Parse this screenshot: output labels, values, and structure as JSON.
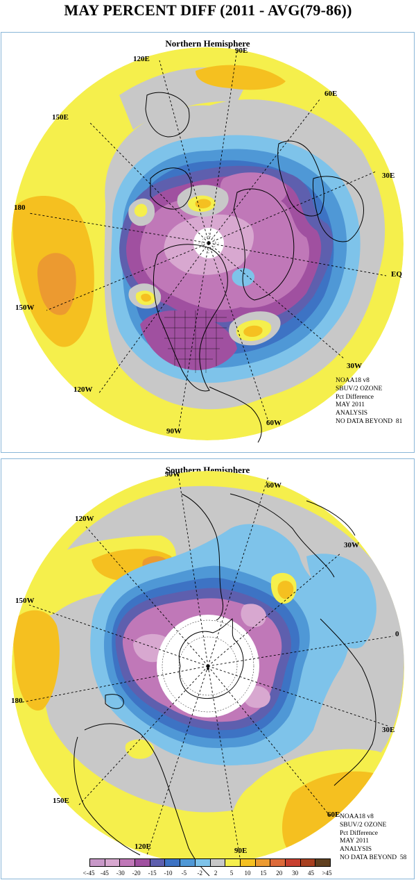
{
  "title": "MAY PERCENT DIFF (2011 - AVG(79-86))",
  "colors": {
    "n45plus": "#c898c8",
    "n45": "#d8a8d0",
    "n30": "#c078b8",
    "n20": "#a050a0",
    "n15": "#5e5fae",
    "n10": "#3d73c4",
    "n5": "#4f98d6",
    "n2": "#7ec3ea",
    "zero": "#c8c8c8",
    "p2": "#f5ef4c",
    "p5": "#f5c020",
    "p10": "#ec9a30",
    "p15": "#dd6a3a",
    "p20": "#c84030",
    "p30": "#a84020",
    "p45": "#8a5018",
    "p45plus": "#604020",
    "panel_border": "#89b6d8"
  },
  "north": {
    "title": "Northern Hemisphere",
    "labels": {
      "lon90e": "90E",
      "lon120e": "120E",
      "lon60e": "60E",
      "lon150e": "150E",
      "lon30e": "30E",
      "lon180": "180",
      "eq": "EQ",
      "lon150w": "150W",
      "lon30w": "30W",
      "lon120w": "120W",
      "lon60w": "60W",
      "lon90w": "90W"
    },
    "info": [
      "NOAA18 v8",
      "SBUV/2 OZONE",
      "Pct Difference",
      "MAY 2011",
      "ANALYSIS",
      "NO DATA BEYOND  81"
    ]
  },
  "south": {
    "title": "Southern Hemisphere",
    "labels": {
      "lon90w": "90W",
      "lon60w": "60W",
      "lon120w": "120W",
      "lon30w": "30W",
      "lon150w": "150W",
      "lon0": "0",
      "lon180": "180",
      "lon30e": "30E",
      "lon150e": "150E",
      "lon60e": "60E",
      "lon120e": "120E",
      "lon90e": "90E"
    },
    "info": [
      "NOAA18 v8",
      "SBUV/2 OZONE",
      "Pct Difference",
      "MAY 2011",
      "ANALYSIS",
      "NO DATA BEYOND  58"
    ]
  },
  "colorbar": {
    "labels": [
      "<-45",
      "-45",
      "-30",
      "-20",
      "-15",
      "-10",
      "-5",
      "-2",
      "2",
      "5",
      "10",
      "15",
      "20",
      "30",
      "45",
      ">45"
    ]
  }
}
